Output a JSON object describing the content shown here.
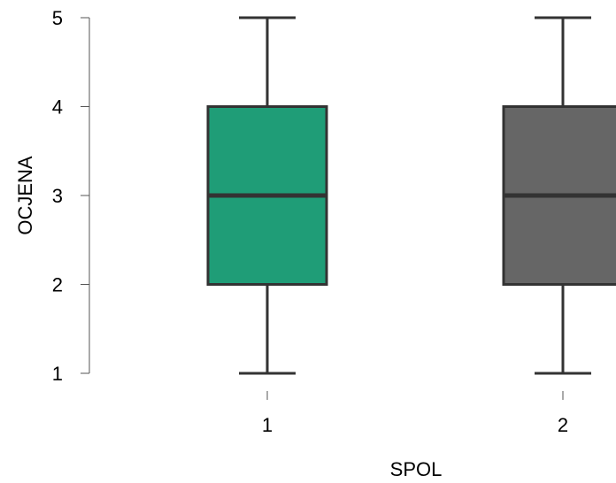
{
  "chart_data": {
    "type": "boxplot",
    "xlabel": "SPOL",
    "ylabel": "OCJENA",
    "ylim": [
      1,
      5
    ],
    "yticks": [
      1,
      2,
      3,
      4,
      5
    ],
    "categories": [
      "1",
      "2"
    ],
    "boxes": [
      {
        "category": "1",
        "min": 1,
        "q1": 2,
        "median": 3,
        "q3": 4,
        "max": 5,
        "color": "#1f9d77"
      },
      {
        "category": "2",
        "min": 1,
        "q1": 2,
        "median": 3,
        "q3": 4,
        "max": 5,
        "color": "#666666"
      }
    ],
    "grid": false,
    "legend": "none"
  }
}
